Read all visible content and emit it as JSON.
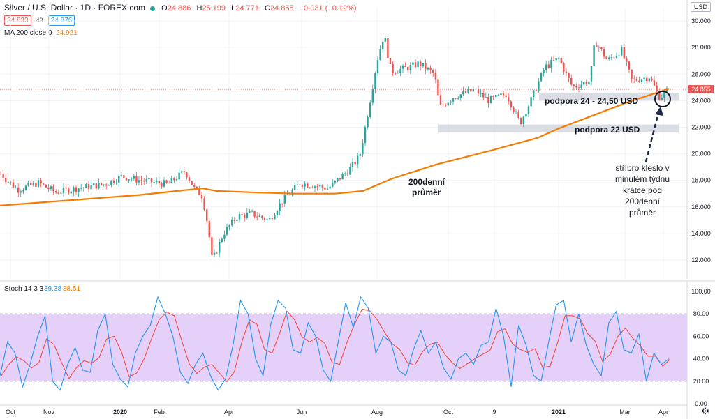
{
  "header": {
    "symbol": "Silver / U.S. Dollar · 1D · FOREX.com",
    "o_label": "O",
    "o": "24.886",
    "h_label": "H",
    "h": "25.199",
    "l_label": "L",
    "l": "24.771",
    "c_label": "C",
    "c": "24.855",
    "change": "−0.031 (−0.12%)",
    "bid": "24.833",
    "spread": "43",
    "ask": "24.876",
    "ma_label": "MA 200 close 0",
    "ma_value": "24.921",
    "currency": "USD"
  },
  "stoch": {
    "label": "Stoch 14 3 3",
    "k": "39.38",
    "d": "38.51"
  },
  "colors": {
    "up": "#26a69a",
    "down": "#ef5350",
    "ma": "#f57c00",
    "stoch_k": "#2196f3",
    "stoch_d": "#f44336",
    "stoch_band": "#e1c8f8"
  },
  "chart_data": [
    {
      "type": "candlestick",
      "title": "Silver / U.S. Dollar · 1D · FOREX.com",
      "ylim": [
        11,
        31
      ],
      "yticks": [
        "12.000",
        "14.000",
        "16.000",
        "18.000",
        "20.000",
        "22.000",
        "24.000",
        "26.000",
        "28.000",
        "30.000"
      ],
      "xticks": [
        "Oct",
        "Nov",
        "2020",
        "Feb",
        "Apr",
        "Jun",
        "Aug",
        "Oct",
        "9",
        "2021",
        "Mar",
        "Apr"
      ],
      "last_price": "24.855",
      "price_path": [
        [
          0,
          18.5
        ],
        [
          25,
          17.3
        ],
        [
          55,
          17.8
        ],
        [
          80,
          17.1
        ],
        [
          110,
          17.4
        ],
        [
          150,
          17.7
        ],
        [
          175,
          18.3
        ],
        [
          200,
          18.0
        ],
        [
          240,
          17.7
        ],
        [
          265,
          18.7
        ],
        [
          278,
          17.4
        ],
        [
          290,
          16.8
        ],
        [
          298,
          14.5
        ],
        [
          304,
          11.9
        ],
        [
          320,
          14.0
        ],
        [
          340,
          15.3
        ],
        [
          360,
          15.5
        ],
        [
          385,
          15.0
        ],
        [
          405,
          16.5
        ],
        [
          430,
          17.8
        ],
        [
          470,
          17.4
        ],
        [
          500,
          18.8
        ],
        [
          515,
          19.8
        ],
        [
          525,
          22.5
        ],
        [
          540,
          27.0
        ],
        [
          550,
          29.0
        ],
        [
          560,
          26.2
        ],
        [
          585,
          26.5
        ],
        [
          600,
          26.8
        ],
        [
          622,
          26.0
        ],
        [
          630,
          23.5
        ],
        [
          650,
          24.3
        ],
        [
          680,
          24.8
        ],
        [
          700,
          24.0
        ],
        [
          725,
          24.5
        ],
        [
          745,
          22.3
        ],
        [
          760,
          24.0
        ],
        [
          780,
          26.5
        ],
        [
          800,
          27.2
        ],
        [
          820,
          25.0
        ],
        [
          845,
          25.5
        ],
        [
          852,
          28.5
        ],
        [
          870,
          27.0
        ],
        [
          890,
          27.8
        ],
        [
          905,
          25.5
        ],
        [
          930,
          25.8
        ],
        [
          945,
          24.2
        ],
        [
          958,
          24.9
        ]
      ],
      "ma200_path": [
        [
          0,
          16.1
        ],
        [
          100,
          16.5
        ],
        [
          200,
          16.9
        ],
        [
          290,
          17.4
        ],
        [
          310,
          17.2
        ],
        [
          360,
          17.1
        ],
        [
          420,
          17.0
        ],
        [
          480,
          17.0
        ],
        [
          520,
          17.2
        ],
        [
          560,
          18.1
        ],
        [
          625,
          19.2
        ],
        [
          700,
          20.2
        ],
        [
          770,
          21.2
        ],
        [
          800,
          21.9
        ],
        [
          850,
          22.9
        ],
        [
          900,
          23.9
        ],
        [
          958,
          24.9
        ]
      ],
      "annotations": [
        {
          "text": "podpora 24 - 24,50 USD",
          "y": [
            24.0,
            24.6
          ],
          "x_range": [
            772,
            972
          ]
        },
        {
          "text": "podpora 22 USD",
          "y": [
            21.6,
            22.2
          ],
          "x_range": [
            628,
            972
          ]
        },
        {
          "text": "200denní průměr",
          "note": "label near MA line"
        },
        {
          "text": "stříbro kleslo v minulém týdnu krátce pod 200denní průměr",
          "note": "arrow to latest candle"
        }
      ]
    },
    {
      "type": "line",
      "title": "Stoch 14 3 3",
      "ylim": [
        0,
        100
      ],
      "yticks": [
        "0.00",
        "20.00",
        "40.00",
        "60.00",
        "80.00",
        "100.00"
      ],
      "band": [
        20,
        80
      ],
      "series": [
        {
          "name": "%K",
          "values": [
            25,
            55,
            45,
            15,
            35,
            60,
            78,
            20,
            12,
            35,
            50,
            30,
            28,
            65,
            80,
            35,
            22,
            15,
            45,
            60,
            70,
            95,
            80,
            60,
            28,
            18,
            35,
            45,
            25,
            12,
            22,
            52,
            92,
            80,
            40,
            25,
            70,
            92,
            85,
            48,
            45,
            72,
            60,
            30,
            20,
            55,
            90,
            68,
            95,
            85,
            45,
            60,
            55,
            30,
            25,
            48,
            65,
            45,
            55,
            32,
            22,
            40,
            45,
            35,
            52,
            55,
            85,
            60,
            15,
            70,
            52,
            25,
            20,
            55,
            88,
            92,
            55,
            80,
            52,
            35,
            25,
            72,
            82,
            48,
            45,
            62,
            20,
            45,
            35,
            40
          ]
        }
      ]
    }
  ],
  "labels": {
    "support1": "podpora 24 - 24,50 USD",
    "support2": "podpora 22 USD",
    "ma_line1": "200denní",
    "ma_line2": "průměr",
    "note_lines": [
      "stříbro kleslo v",
      "minulém týdnu",
      "krátce pod",
      "200denní",
      "průměr"
    ]
  }
}
